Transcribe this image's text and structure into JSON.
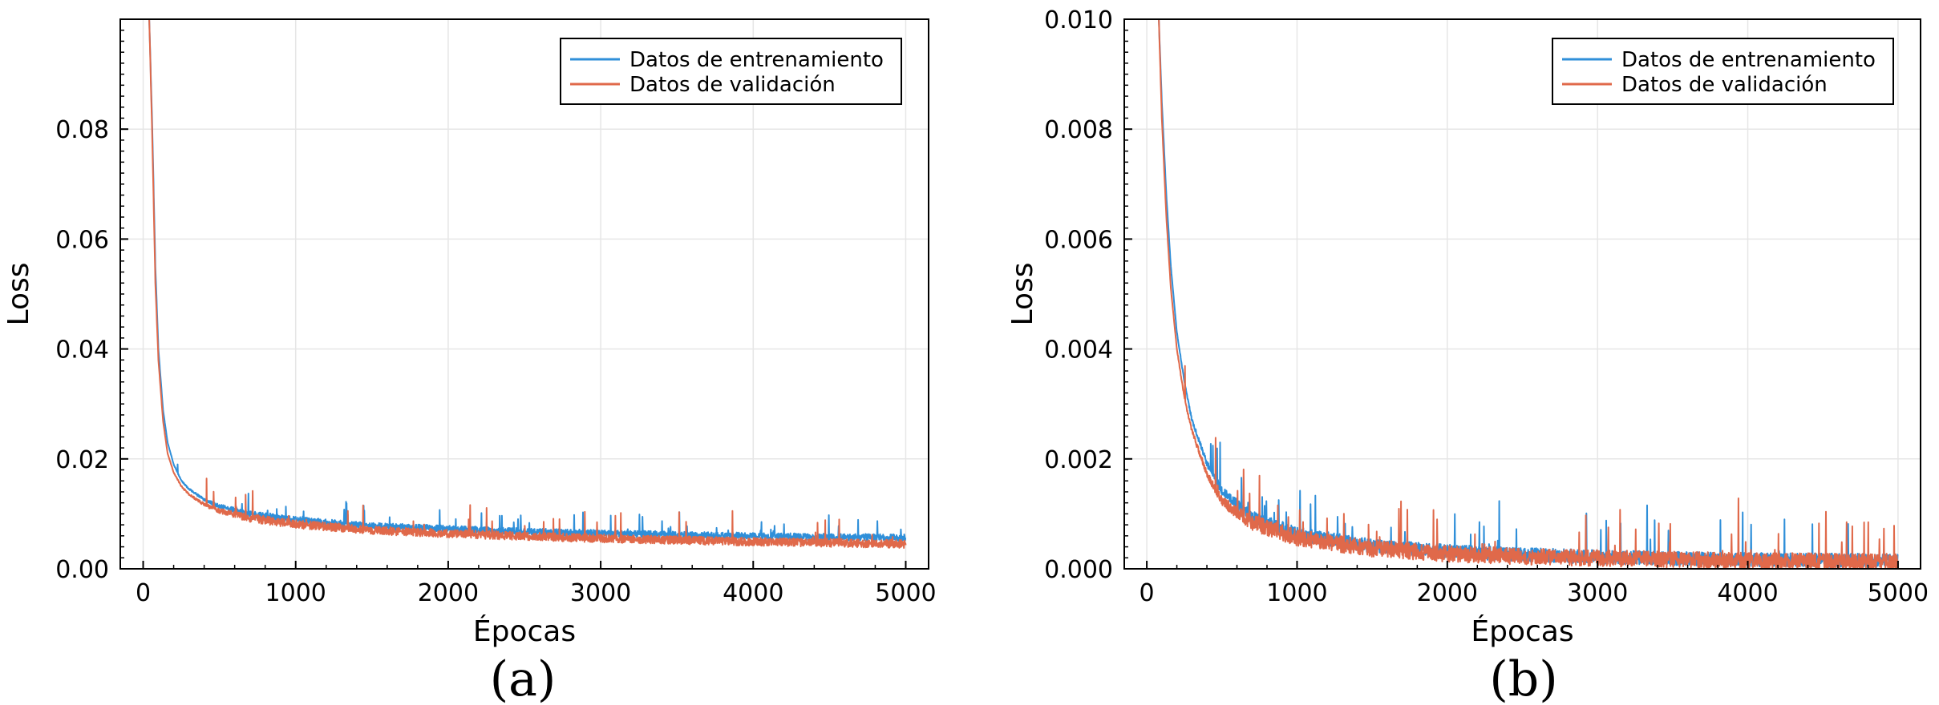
{
  "colors": {
    "train": "#2f8fd9",
    "val": "#e0694a",
    "grid": "#e6e6e6",
    "axis": "#000000"
  },
  "chart_data": [
    {
      "type": "line",
      "panel_label": "(a)",
      "xlabel": "Épocas",
      "ylabel": "Loss",
      "xlim": [
        -150,
        5150
      ],
      "ylim": [
        0,
        0.1
      ],
      "xticks": [
        0,
        1000,
        2000,
        3000,
        4000,
        5000
      ],
      "xtick_labels": [
        "0",
        "1000",
        "2000",
        "3000",
        "4000",
        "5000"
      ],
      "yticks": [
        0.0,
        0.02,
        0.04,
        0.06,
        0.08
      ],
      "ytick_labels": [
        "0.00",
        "0.02",
        "0.04",
        "0.06",
        "0.08"
      ],
      "grid": true,
      "legend_position": "top-right",
      "series": [
        {
          "name": "Datos de entrenamiento",
          "color": "#2f8fd9",
          "x": [
            40,
            60,
            80,
            100,
            130,
            160,
            200,
            250,
            300,
            400,
            500,
            700,
            1000,
            1500,
            2000,
            2500,
            3000,
            3500,
            4000,
            4500,
            5000
          ],
          "y": [
            0.1,
            0.08,
            0.055,
            0.04,
            0.029,
            0.023,
            0.019,
            0.016,
            0.0145,
            0.0125,
            0.0113,
            0.0098,
            0.0087,
            0.0076,
            0.0071,
            0.0066,
            0.0063,
            0.006,
            0.0058,
            0.0056,
            0.0055
          ],
          "noise_amp": 0.0012
        },
        {
          "name": "Datos de validación",
          "color": "#e0694a",
          "x": [
            40,
            60,
            80,
            100,
            130,
            160,
            200,
            250,
            300,
            400,
            500,
            700,
            1000,
            1500,
            2000,
            2500,
            3000,
            3500,
            4000,
            4500,
            5000
          ],
          "y": [
            0.1,
            0.078,
            0.052,
            0.038,
            0.027,
            0.021,
            0.0175,
            0.015,
            0.0135,
            0.0116,
            0.0104,
            0.009,
            0.0079,
            0.0068,
            0.0062,
            0.0057,
            0.0053,
            0.005,
            0.0047,
            0.0045,
            0.0043
          ],
          "noise_amp": 0.0015
        }
      ]
    },
    {
      "type": "line",
      "panel_label": "(b)",
      "xlabel": "Épocas",
      "ylabel": "Loss",
      "xlim": [
        -150,
        5150
      ],
      "ylim": [
        0,
        0.01
      ],
      "xticks": [
        0,
        1000,
        2000,
        3000,
        4000,
        5000
      ],
      "xtick_labels": [
        "0",
        "1000",
        "2000",
        "3000",
        "4000",
        "5000"
      ],
      "yticks": [
        0.0,
        0.002,
        0.004,
        0.006,
        0.008,
        0.01
      ],
      "ytick_labels": [
        "0.000",
        "0.002",
        "0.004",
        "0.006",
        "0.008",
        "0.010"
      ],
      "grid": true,
      "legend_position": "top-right",
      "series": [
        {
          "name": "Datos de entrenamiento",
          "color": "#2f8fd9",
          "x": [
            80,
            100,
            130,
            160,
            200,
            250,
            300,
            400,
            500,
            700,
            1000,
            1500,
            2000,
            2500,
            3000,
            3500,
            4000,
            4500,
            5000
          ],
          "y": [
            0.01,
            0.0085,
            0.0068,
            0.0055,
            0.0043,
            0.0034,
            0.0027,
            0.0019,
            0.0014,
            0.0009,
            0.0006,
            0.00038,
            0.00028,
            0.00022,
            0.00018,
            0.00015,
            0.00013,
            0.00012,
            0.00011
          ],
          "noise_amp": 0.00025
        },
        {
          "name": "Datos de validación",
          "color": "#e0694a",
          "x": [
            80,
            100,
            130,
            160,
            200,
            250,
            300,
            400,
            500,
            700,
            1000,
            1500,
            2000,
            2500,
            3000,
            3500,
            4000,
            4500,
            5000
          ],
          "y": [
            0.01,
            0.0082,
            0.0064,
            0.0051,
            0.004,
            0.0031,
            0.0025,
            0.0017,
            0.0012,
            0.0008,
            0.00052,
            0.00032,
            0.00023,
            0.00018,
            0.00015,
            0.00012,
            0.0001,
            9e-05,
            8e-05
          ],
          "noise_amp": 0.0003
        }
      ]
    }
  ]
}
